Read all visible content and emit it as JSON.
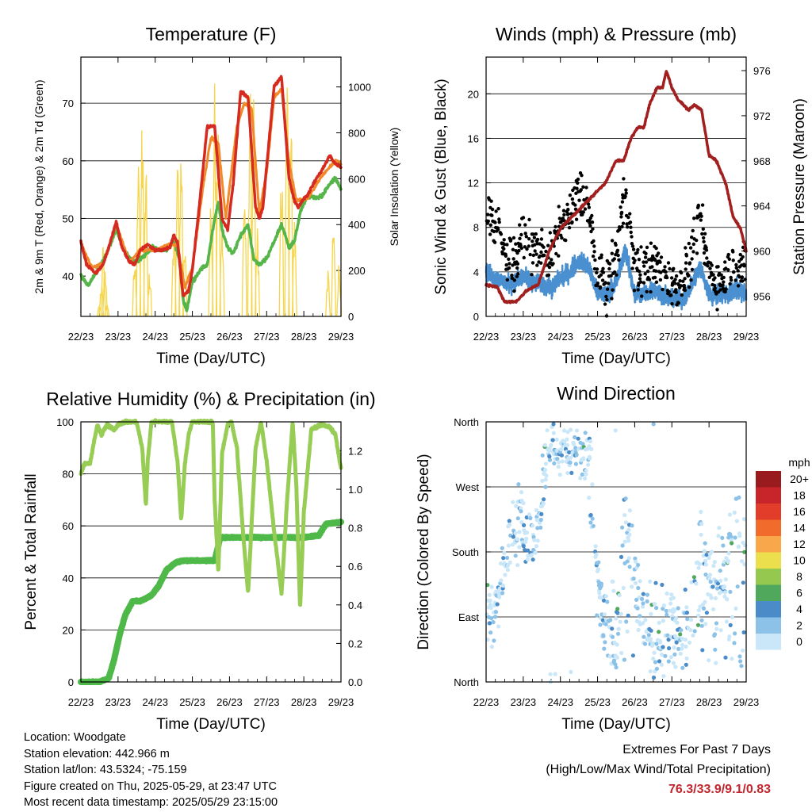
{
  "x_tick_labels": [
    "22/23",
    "23/23",
    "24/23",
    "25/23",
    "26/23",
    "27/23",
    "28/23",
    "29/23"
  ],
  "x_axis_title": "Time (Day/UTC)",
  "panels": {
    "temperature": {
      "title": "Temperature (F)",
      "ylabel_left": "2m & 9m T (Red, Orange) & 2m Td (Green)",
      "ylabel_right": "Solar Insolation (Yellow)"
    },
    "winds": {
      "title": "Winds (mph) & Pressure (mb)",
      "ylabel_left": "Sonic Wind & Gust (Blue, Black)",
      "ylabel_right": "Station Pressure (Maroon)"
    },
    "humidity": {
      "title": "Relative Humidity (%) & Precipitation (in)",
      "ylabel_left": "Percent & Total Rainfall"
    },
    "direction": {
      "title": "Wind Direction",
      "ylabel_left": "Direction (Colored By Speed)",
      "legend_title": "mph"
    }
  },
  "info": {
    "location": "Location: Woodgate",
    "elevation": "Station elevation: 442.966 m",
    "latlon": "Station lat/lon: 43.5324; -75.159",
    "created": "Figure created on Thu, 2025-05-29, at 23:47 UTC",
    "recent": "Most recent data timestamp: 2025/05/29 23:15:00"
  },
  "extremes": {
    "line1": "Extremes For Past 7 Days",
    "line2": "(High/Low/Max Wind/Total Precipitation)",
    "values": "76.3/33.9/9.1/0.83"
  },
  "chart_data": [
    {
      "type": "line",
      "title": "Temperature (F)",
      "xlabel": "Time (Day/UTC)",
      "ylabel": "2m & 9m T (Red, Orange) & 2m Td (Green)",
      "y2label": "Solar Insolation (Yellow)",
      "x_unit": "days since 22/23",
      "xlim": [
        0,
        7
      ],
      "ylim": [
        33,
        78
      ],
      "y_ticks": [
        40,
        50,
        60,
        70
      ],
      "y2lim": [
        0,
        1130
      ],
      "y2_ticks": [
        0,
        200,
        400,
        600,
        800,
        1000
      ],
      "grid": true,
      "series": [
        {
          "name": "2m T",
          "color": "#d42a1f",
          "axis": "left",
          "x": [
            0,
            0.15,
            0.4,
            0.6,
            0.8,
            0.95,
            1.1,
            1.3,
            1.45,
            1.6,
            1.8,
            2.0,
            2.2,
            2.4,
            2.5,
            2.6,
            2.75,
            2.9,
            3.0,
            3.2,
            3.4,
            3.6,
            3.8,
            3.95,
            4.1,
            4.3,
            4.5,
            4.7,
            4.8,
            4.9,
            5.0,
            5.2,
            5.4,
            5.6,
            5.75,
            5.85,
            5.95,
            6.1,
            6.3,
            6.5,
            6.7,
            6.85,
            7.0
          ],
          "values": [
            46,
            42,
            40.5,
            42,
            46,
            49.5,
            45,
            42.5,
            42,
            44.5,
            45.5,
            44.5,
            44.5,
            45,
            47,
            46,
            36.5,
            37.5,
            41,
            53,
            66,
            66,
            50,
            48,
            56,
            72,
            71,
            52,
            50,
            52,
            59,
            73,
            74.5,
            57,
            53,
            52,
            53,
            54,
            56.5,
            58.5,
            61,
            59.5,
            59
          ]
        },
        {
          "name": "9m T",
          "color": "#f08a2a",
          "axis": "left",
          "x": [
            0,
            0.3,
            0.6,
            0.95,
            1.3,
            1.6,
            2.0,
            2.4,
            2.6,
            2.8,
            3.0,
            3.3,
            3.5,
            3.7,
            3.9,
            4.2,
            4.4,
            4.6,
            4.8,
            5.0,
            5.2,
            5.4,
            5.6,
            5.8,
            6.1,
            6.5,
            6.85,
            7.0
          ],
          "values": [
            45.5,
            41.5,
            42,
            49,
            42.5,
            44.5,
            44.5,
            45.5,
            45.5,
            38,
            41.5,
            56,
            64,
            63,
            50,
            66,
            70,
            69,
            51,
            58,
            71,
            72.5,
            60,
            53,
            53.5,
            57.5,
            60,
            59.5
          ]
        },
        {
          "name": "2m Td",
          "color": "#55b548",
          "axis": "left",
          "x": [
            0,
            0.2,
            0.45,
            0.7,
            0.95,
            1.2,
            1.45,
            1.7,
            1.9,
            2.1,
            2.3,
            2.5,
            2.65,
            2.75,
            2.85,
            3.0,
            3.2,
            3.4,
            3.55,
            3.7,
            3.8,
            3.95,
            4.1,
            4.3,
            4.5,
            4.65,
            4.8,
            5.0,
            5.2,
            5.4,
            5.6,
            5.75,
            5.9,
            6.1,
            6.3,
            6.5,
            6.7,
            6.85,
            7.0
          ],
          "values": [
            40,
            38.5,
            41,
            44,
            48,
            44,
            42.5,
            43.5,
            45,
            44.5,
            44.5,
            46,
            43,
            36,
            34,
            39,
            41,
            42,
            48,
            53,
            48,
            45,
            44,
            47,
            49,
            43,
            42,
            43,
            46,
            49,
            45,
            46,
            51,
            54,
            53.5,
            54,
            56,
            57,
            55
          ]
        },
        {
          "name": "Solar Insolation",
          "color": "#f6d54a",
          "axis": "right",
          "x": [
            0.5,
            0.55,
            0.6,
            0.65,
            0.7,
            1.45,
            1.55,
            1.65,
            1.75,
            1.85,
            2.5,
            2.6,
            2.7,
            2.8,
            3.5,
            3.6,
            3.7,
            3.8,
            4.4,
            4.55,
            4.65,
            4.75,
            5.4,
            5.55,
            5.65,
            5.75,
            6.65,
            6.8,
            6.95
          ],
          "values": [
            50,
            150,
            320,
            220,
            60,
            300,
            700,
            870,
            650,
            200,
            420,
            760,
            820,
            300,
            600,
            1050,
            900,
            500,
            600,
            1050,
            950,
            400,
            700,
            1080,
            980,
            450,
            200,
            420,
            250
          ]
        }
      ]
    },
    {
      "type": "line",
      "title": "Winds (mph) & Pressure (mb)",
      "xlabel": "Time (Day/UTC)",
      "ylabel": "Sonic Wind & Gust (Blue, Black)",
      "y2label": "Station Pressure (Maroon)",
      "x_unit": "days since 22/23",
      "xlim": [
        0,
        7
      ],
      "ylim": [
        0,
        23.3
      ],
      "y_ticks": [
        0,
        4,
        8,
        12,
        16,
        20
      ],
      "y2lim": [
        954.2,
        977.2
      ],
      "y2_ticks": [
        956,
        960,
        964,
        968,
        972,
        976
      ],
      "grid": true,
      "series": [
        {
          "name": "Sonic Wind",
          "color": "#4a90d0",
          "axis": "left",
          "x": [
            0,
            0.25,
            0.5,
            0.75,
            1.0,
            1.25,
            1.5,
            1.75,
            2.0,
            2.25,
            2.5,
            2.75,
            3.0,
            3.25,
            3.5,
            3.75,
            4.0,
            4.25,
            4.5,
            4.75,
            5.0,
            5.25,
            5.5,
            5.75,
            6.0,
            6.25,
            6.5,
            6.75,
            7.0
          ],
          "values": [
            4,
            3.5,
            3,
            3,
            3.5,
            3,
            3,
            2.5,
            3.5,
            4,
            5,
            4.5,
            2,
            2,
            3,
            6,
            2,
            2,
            2.5,
            2,
            1.5,
            1.5,
            2.5,
            4.5,
            2,
            2,
            2,
            2.5,
            2
          ]
        },
        {
          "name": "Gust",
          "color": "#000000",
          "axis": "left",
          "x": [
            0,
            0.25,
            0.5,
            0.75,
            1.0,
            1.25,
            1.5,
            1.75,
            2.0,
            2.25,
            2.5,
            2.75,
            3.0,
            3.25,
            3.5,
            3.75,
            4.0,
            4.25,
            4.5,
            4.75,
            5.0,
            5.25,
            5.5,
            5.75,
            6.0,
            6.25,
            6.5,
            6.75,
            7.0
          ],
          "values": [
            10,
            8,
            6,
            5,
            7,
            6,
            6,
            5,
            8,
            9,
            11,
            10,
            3,
            3,
            5,
            12,
            4,
            4,
            5,
            4,
            3,
            3,
            5,
            9,
            4,
            3,
            4,
            5,
            4
          ]
        },
        {
          "name": "Station Pressure",
          "color": "#a11f1f",
          "axis": "right",
          "x": [
            0,
            0.3,
            0.5,
            0.8,
            1.1,
            1.4,
            1.7,
            2.0,
            2.3,
            2.6,
            2.9,
            3.2,
            3.5,
            3.7,
            3.9,
            4.1,
            4.25,
            4.4,
            4.6,
            4.75,
            4.85,
            5.0,
            5.15,
            5.3,
            5.45,
            5.6,
            5.8,
            6.0,
            6.2,
            6.45,
            6.65,
            6.85,
            7.0
          ],
          "values": [
            957,
            956.8,
            955.5,
            955.5,
            956.5,
            957,
            960,
            962,
            963,
            964,
            965,
            966,
            968,
            968,
            970,
            971,
            971,
            973,
            974.5,
            974.5,
            976,
            974.5,
            973.5,
            973,
            972.5,
            973,
            972.5,
            968.5,
            968,
            966,
            963,
            962,
            960
          ]
        }
      ]
    },
    {
      "type": "line",
      "title": "Relative Humidity (%) & Precipitation (in)",
      "xlabel": "Time (Day/UTC)",
      "ylabel": "Percent & Total Rainfall",
      "x_unit": "days since 22/23",
      "xlim": [
        0,
        7
      ],
      "ylim": [
        0,
        100
      ],
      "y_ticks": [
        0,
        20,
        40,
        60,
        80,
        100
      ],
      "y2lim": [
        0,
        1.35
      ],
      "y2_ticks": [
        0.0,
        0.2,
        0.4,
        0.6,
        0.8,
        1.0,
        1.2
      ],
      "grid": true,
      "series": [
        {
          "name": "Relative Humidity",
          "color": "#97cd55",
          "axis": "left",
          "x": [
            0,
            0.1,
            0.25,
            0.4,
            0.45,
            0.55,
            0.7,
            0.9,
            1.0,
            1.2,
            1.5,
            1.65,
            1.75,
            1.8,
            1.9,
            2.0,
            2.05,
            2.2,
            2.45,
            2.6,
            2.7,
            2.8,
            2.9,
            3.0,
            3.2,
            3.4,
            3.55,
            3.6,
            3.7,
            3.8,
            3.95,
            4.05,
            4.2,
            4.35,
            4.5,
            4.6,
            4.7,
            4.85,
            5.0,
            5.2,
            5.4,
            5.55,
            5.7,
            5.8,
            5.9,
            6.0,
            6.2,
            6.5,
            6.7,
            6.85,
            7.0
          ],
          "values": [
            80,
            84,
            84,
            96,
            99,
            95,
            99,
            97,
            99,
            100,
            100,
            90,
            68,
            85,
            100,
            100,
            100,
            100,
            100,
            85,
            62,
            84,
            95,
            100,
            100,
            100,
            100,
            70,
            42,
            88,
            99,
            100,
            90,
            60,
            34,
            62,
            90,
            100,
            85,
            58,
            34,
            70,
            100,
            75,
            28,
            65,
            97,
            99,
            98,
            95,
            82
          ]
        },
        {
          "name": "Total Precipitation",
          "color": "#4eb848",
          "axis": "right",
          "x": [
            0,
            0.5,
            0.75,
            0.9,
            1.05,
            1.2,
            1.4,
            1.6,
            1.9,
            2.1,
            2.3,
            2.55,
            2.75,
            3.0,
            3.3,
            3.6,
            3.75,
            4.0,
            4.5,
            5.0,
            5.5,
            6.0,
            6.4,
            6.6,
            7.0
          ],
          "values": [
            0,
            0,
            0.02,
            0.12,
            0.25,
            0.35,
            0.42,
            0.42,
            0.45,
            0.5,
            0.58,
            0.62,
            0.63,
            0.63,
            0.63,
            0.63,
            0.75,
            0.75,
            0.75,
            0.75,
            0.75,
            0.75,
            0.76,
            0.82,
            0.83
          ]
        }
      ]
    },
    {
      "type": "scatter",
      "title": "Wind Direction",
      "xlabel": "Time (Day/UTC)",
      "ylabel": "Direction (Colored By Speed)",
      "x_unit": "days since 22/23",
      "xlim": [
        0,
        7
      ],
      "y_tick_labels": [
        "North",
        "East",
        "South",
        "West",
        "North"
      ],
      "y_tick_values": [
        0,
        90,
        180,
        270,
        360
      ],
      "ylim": [
        0,
        360
      ],
      "grid": true,
      "legend": {
        "title": "mph",
        "position": "right",
        "labels": [
          "20+",
          "18",
          "16",
          "14",
          "12",
          "10",
          "8",
          "6",
          "4",
          "2",
          "0"
        ],
        "colors": [
          "#9a1b1e",
          "#c8252a",
          "#e23c2a",
          "#f06b2c",
          "#f8a84a",
          "#ebdf4e",
          "#95c84f",
          "#4fa85c",
          "#4a8bc8",
          "#8cc2e8",
          "#c9e7f8"
        ]
      },
      "series": [
        {
          "name": "Wind Direction",
          "x": [
            0.1,
            0.15,
            0.3,
            0.5,
            0.7,
            0.9,
            1.1,
            1.3,
            1.5,
            1.7,
            1.9,
            2.1,
            2.3,
            2.5,
            2.7,
            2.9,
            3.1,
            3.3,
            3.5,
            3.7,
            3.9,
            4.1,
            4.3,
            4.5,
            4.7,
            4.9,
            5.1,
            5.3,
            5.5,
            5.7,
            5.9,
            6.1,
            6.3,
            6.5,
            6.7,
            6.9
          ],
          "values": [
            100,
            90,
            110,
            160,
            200,
            230,
            210,
            185,
            260,
            340,
            330,
            320,
            330,
            340,
            300,
            200,
            100,
            60,
            40,
            220,
            200,
            110,
            80,
            30,
            60,
            80,
            60,
            70,
            40,
            190,
            170,
            160,
            150,
            180,
            230,
            200
          ]
        }
      ]
    }
  ]
}
